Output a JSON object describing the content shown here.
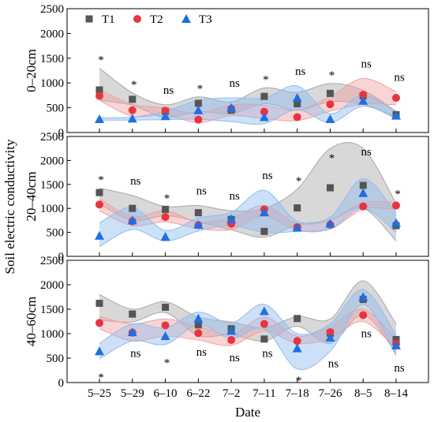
{
  "chart_data": {
    "type": "scatter",
    "xlabel": "Date",
    "ylabel": "Soil electric conductivity",
    "categories": [
      "5–25",
      "5–29",
      "6–10",
      "6–22",
      "7–2",
      "7–11",
      "7–18",
      "7–26",
      "8–5",
      "8–14"
    ],
    "ylim": [
      0,
      2500
    ],
    "yticks": [
      0,
      500,
      1000,
      1500,
      2000,
      2500
    ],
    "legend": {
      "position": "top-left",
      "entries": [
        "T1",
        "T2",
        "T3"
      ]
    },
    "series_styles": [
      {
        "name": "T1",
        "marker": "square",
        "color": "#555555",
        "band": "#a8a8a8"
      },
      {
        "name": "T2",
        "marker": "circle",
        "color": "#e8343f",
        "band": "#f2a0a0"
      },
      {
        "name": "T3",
        "marker": "triangle",
        "color": "#1f6fe0",
        "band": "#8fbcf0"
      }
    ],
    "panels": [
      {
        "label": "0–20cm",
        "series": [
          {
            "name": "T1",
            "values": [
              860,
              670,
              430,
              590,
              450,
              730,
              580,
              790,
              740,
              360
            ],
            "lower": [
              650,
              550,
              300,
              420,
              380,
              580,
              450,
              620,
              570,
              300
            ],
            "upper": [
              1300,
              800,
              560,
              720,
              620,
              900,
              810,
              990,
              850,
              430
            ]
          },
          {
            "name": "T2",
            "values": [
              740,
              450,
              440,
              260,
              480,
              420,
              310,
              570,
              760,
              700
            ],
            "lower": [
              650,
              330,
              350,
              200,
              340,
              280,
              240,
              430,
              570,
              560
            ],
            "upper": [
              870,
              570,
              500,
              380,
              560,
              550,
              450,
              730,
              1090,
              820
            ]
          },
          {
            "name": "T3",
            "values": [
              270,
              280,
              330,
              450,
              500,
              310,
              700,
              270,
              640,
              340
            ],
            "lower": [
              250,
              250,
              260,
              270,
              220,
              180,
              460,
              200,
              530,
              280
            ],
            "upper": [
              300,
              310,
              430,
              650,
              700,
              700,
              940,
              380,
              760,
              400
            ]
          }
        ],
        "significance": [
          "*",
          "*",
          "ns",
          "*",
          "ns",
          "*",
          "ns",
          "*",
          "ns",
          "ns"
        ]
      },
      {
        "label": "20–40cm",
        "series": [
          {
            "name": "T1",
            "values": [
              1330,
              1000,
              980,
              910,
              770,
              520,
              1010,
              1430,
              1480,
              640
            ],
            "lower": [
              1100,
              750,
              850,
              720,
              550,
              400,
              660,
              750,
              1000,
              320
            ],
            "upper": [
              1420,
              1270,
              1040,
              1060,
              950,
              1000,
              1400,
              2250,
              2250,
              1100
            ]
          },
          {
            "name": "T2",
            "values": [
              1080,
              730,
              820,
              650,
              680,
              980,
              610,
              660,
              1040,
              1060
            ],
            "lower": [
              950,
              640,
              720,
              580,
              560,
              840,
              540,
              570,
              980,
              980
            ],
            "upper": [
              1200,
              830,
              950,
              720,
              800,
              1060,
              680,
              760,
              1120,
              1130
            ]
          },
          {
            "name": "T3",
            "values": [
              430,
              750,
              410,
              660,
              780,
              920,
              600,
              680,
              1320,
              700
            ],
            "lower": [
              200,
              560,
              320,
              530,
              640,
              500,
              520,
              580,
              1000,
              500
            ],
            "upper": [
              700,
              1020,
              540,
              800,
              920,
              1380,
              730,
              820,
              1620,
              900
            ]
          }
        ],
        "significance": [
          "*",
          "ns",
          "*",
          "ns",
          "ns",
          "ns",
          "*",
          "*",
          "ns",
          "*"
        ]
      },
      {
        "label": "40–60cm",
        "series": [
          {
            "name": "T1",
            "values": [
              1620,
              1400,
              1540,
              1180,
              1100,
              890,
              1310,
              1010,
              1700,
              880
            ],
            "lower": [
              1280,
              1240,
              1430,
              960,
              980,
              850,
              1150,
              800,
              1380,
              600
            ],
            "upper": [
              1800,
              1500,
              1650,
              1340,
              1240,
              1120,
              1350,
              1300,
              2080,
              1200
            ]
          },
          {
            "name": "T2",
            "values": [
              1220,
              1020,
              1170,
              1010,
              870,
              1200,
              850,
              1030,
              1380,
              790
            ],
            "lower": [
              1100,
              850,
              950,
              870,
              760,
              1050,
              800,
              900,
              1250,
              680
            ],
            "upper": [
              1350,
              1200,
              1300,
              1150,
              980,
              1340,
              950,
              1150,
              1500,
              880
            ]
          },
          {
            "name": "T3",
            "values": [
              640,
              1030,
              950,
              1310,
              1060,
              1460,
              700,
              920,
              1750,
              760
            ],
            "lower": [
              480,
              850,
              780,
              1180,
              900,
              1100,
              280,
              640,
              1600,
              550
            ],
            "upper": [
              800,
              1200,
              1120,
              1440,
              1220,
              1600,
              1000,
              1200,
              1900,
              970
            ]
          }
        ],
        "significance": [
          "*",
          "ns",
          "*",
          "ns",
          "ns",
          "ns",
          "*",
          "ns",
          "ns",
          "ns"
        ]
      }
    ]
  }
}
